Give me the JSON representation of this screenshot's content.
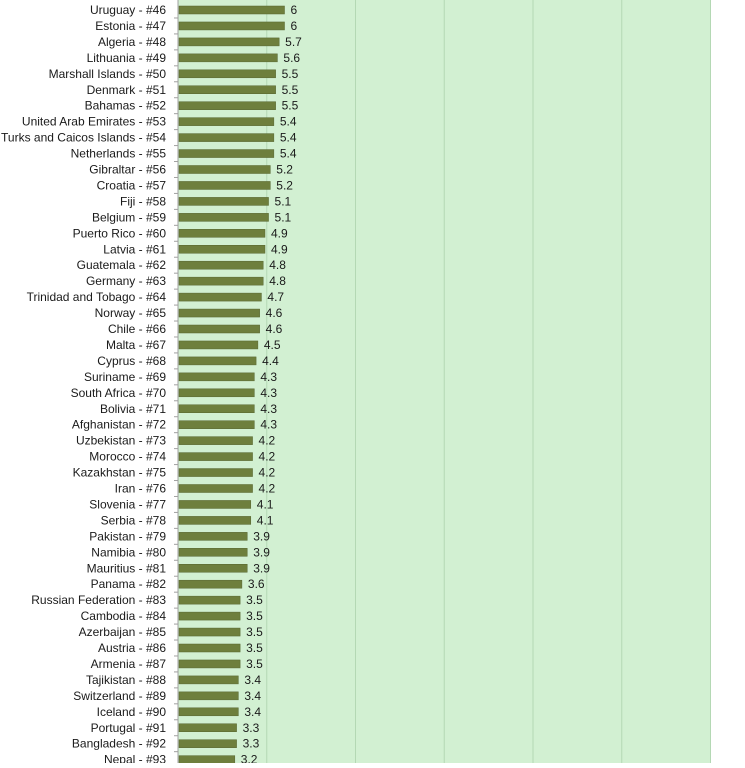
{
  "chart_data": {
    "type": "bar",
    "orientation": "horizontal",
    "categories": [
      "Uruguay - #46",
      "Estonia - #47",
      "Algeria - #48",
      "Lithuania - #49",
      "Marshall Islands - #50",
      "Denmark - #51",
      "Bahamas - #52",
      "United Arab Emirates - #53",
      "Turks and Caicos Islands - #54",
      "Netherlands - #55",
      "Gibraltar - #56",
      "Croatia - #57",
      "Fiji - #58",
      "Belgium - #59",
      "Puerto Rico - #60",
      "Latvia - #61",
      "Guatemala - #62",
      "Germany - #63",
      "Trinidad and Tobago - #64",
      "Norway - #65",
      "Chile - #66",
      "Malta - #67",
      "Cyprus - #68",
      "Suriname - #69",
      "South Africa - #70",
      "Bolivia - #71",
      "Afghanistan - #72",
      "Uzbekistan - #73",
      "Morocco - #74",
      "Kazakhstan - #75",
      "Iran - #76",
      "Slovenia - #77",
      "Serbia - #78",
      "Pakistan - #79",
      "Namibia - #80",
      "Mauritius - #81",
      "Panama - #82",
      "Russian Federation - #83",
      "Cambodia - #84",
      "Azerbaijan - #85",
      "Austria - #86",
      "Armenia - #87",
      "Tajikistan - #88",
      "Switzerland - #89",
      "Iceland - #90",
      "Portugal - #91",
      "Bangladesh - #92",
      "Nepal - #93"
    ],
    "values": [
      6,
      6,
      5.7,
      5.6,
      5.5,
      5.5,
      5.5,
      5.4,
      5.4,
      5.4,
      5.2,
      5.2,
      5.1,
      5.1,
      4.9,
      4.9,
      4.8,
      4.8,
      4.7,
      4.6,
      4.6,
      4.5,
      4.4,
      4.3,
      4.3,
      4.3,
      4.3,
      4.2,
      4.2,
      4.2,
      4.2,
      4.1,
      4.1,
      3.9,
      3.9,
      3.9,
      3.6,
      3.5,
      3.5,
      3.5,
      3.5,
      3.5,
      3.4,
      3.4,
      3.4,
      3.3,
      3.3,
      3.2
    ],
    "data_labels": [
      "6",
      "6",
      "5.7",
      "5.6",
      "5.5",
      "5.5",
      "5.5",
      "5.4",
      "5.4",
      "5.4",
      "5.2",
      "5.2",
      "5.1",
      "5.1",
      "4.9",
      "4.9",
      "4.8",
      "4.8",
      "4.7",
      "4.6",
      "4.6",
      "4.5",
      "4.4",
      "4.3",
      "4.3",
      "4.3",
      "4.3",
      "4.2",
      "4.2",
      "4.2",
      "4.2",
      "4.1",
      "4.1",
      "3.9",
      "3.9",
      "3.9",
      "3.6",
      "3.5",
      "3.5",
      "3.5",
      "3.5",
      "3.5",
      "3.4",
      "3.4",
      "3.4",
      "3.3",
      "3.3",
      "3.2"
    ],
    "xlim": [
      0,
      30
    ],
    "x_grid_step": 5,
    "grid": true,
    "legend": "none",
    "title": "",
    "xlabel": "",
    "ylabel": "",
    "colors": {
      "bar": "#6e7f3d",
      "bar_edge": "#56642f",
      "plot_background": "#d2f0d2",
      "gridline": "#b4d8b4",
      "axis": "#a0a0a0",
      "label_text": "#1a1a1a"
    }
  }
}
